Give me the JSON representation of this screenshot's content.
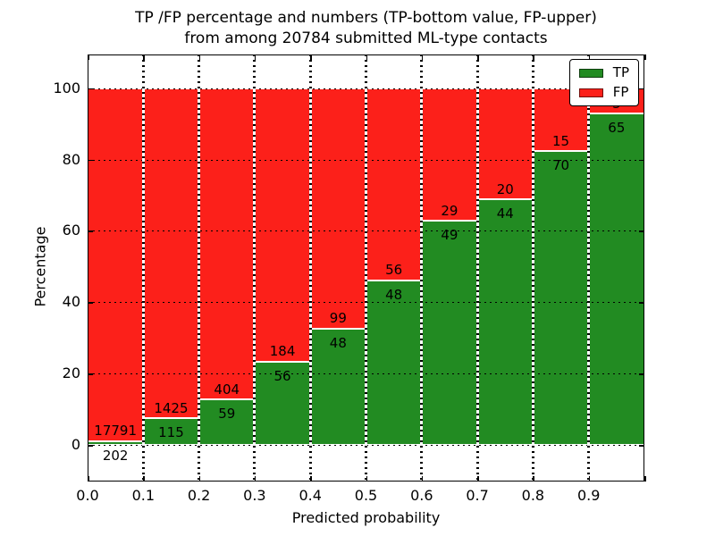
{
  "figure": {
    "title_line1": "TP /FP percentage and numbers (TP-bottom value, FP-upper)",
    "title_line2": "from among 20784 submitted ML-type contacts"
  },
  "chart_data": {
    "type": "bar",
    "stacked": true,
    "normalized_to_percent": true,
    "title": "TP /FP percentage and numbers (TP-bottom value, FP-upper) from among 20784 submitted ML-type contacts",
    "xlabel": "Predicted probability",
    "ylabel": "Percentage",
    "total_submitted": 20784,
    "bins": [
      "0.0-0.1",
      "0.1-0.2",
      "0.2-0.3",
      "0.3-0.4",
      "0.4-0.5",
      "0.5-0.6",
      "0.6-0.7",
      "0.7-0.8",
      "0.8-0.9",
      "0.9-1.0"
    ],
    "series": [
      {
        "name": "TP",
        "color": "#228b22",
        "counts": [
          202,
          115,
          59,
          56,
          48,
          48,
          49,
          44,
          70,
          65
        ]
      },
      {
        "name": "FP",
        "color": "#fc201a",
        "counts": [
          17791,
          1425,
          404,
          184,
          99,
          56,
          29,
          20,
          15,
          5
        ]
      }
    ],
    "tp_percent_of_bin": [
      1.12,
      7.47,
      12.74,
      23.33,
      32.65,
      46.15,
      62.82,
      68.75,
      82.35,
      92.86
    ],
    "x_ticks": [
      "0.0",
      "0.1",
      "0.2",
      "0.3",
      "0.4",
      "0.5",
      "0.6",
      "0.7",
      "0.8",
      "0.9"
    ],
    "y_ticks": [
      0,
      20,
      40,
      60,
      80,
      100
    ],
    "xlim": [
      0.0,
      1.0
    ],
    "ylim": [
      -10.2,
      109.4
    ],
    "grid": "dotted",
    "legend": {
      "position": "upper right",
      "entries": [
        {
          "label": "TP",
          "color": "#228b22"
        },
        {
          "label": "FP",
          "color": "#fc201a"
        }
      ]
    }
  }
}
